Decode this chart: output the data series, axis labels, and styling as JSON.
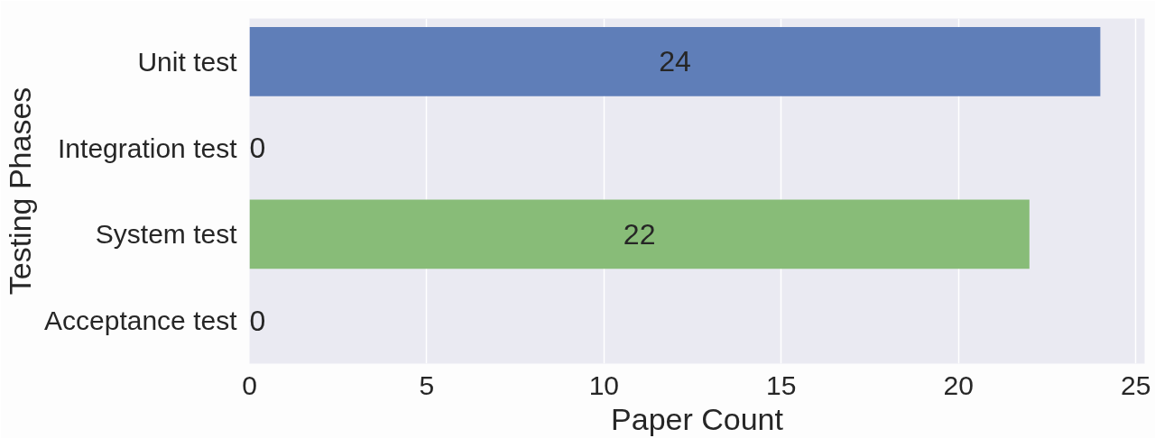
{
  "chart_data": {
    "type": "bar",
    "orientation": "horizontal",
    "xlabel": "Paper Count",
    "ylabel": "Testing Phases",
    "categories": [
      "Unit test",
      "Integration test",
      "System test",
      "Acceptance test"
    ],
    "values": [
      24,
      0,
      22,
      0
    ],
    "colors": [
      "#5f7eb8",
      "#e5956c",
      "#88bc78",
      "#cf6b6e"
    ],
    "xlim": [
      0,
      25.25
    ],
    "xticks": [
      0,
      5,
      10,
      15,
      20,
      25
    ],
    "grid": "x",
    "data_labels": true
  }
}
